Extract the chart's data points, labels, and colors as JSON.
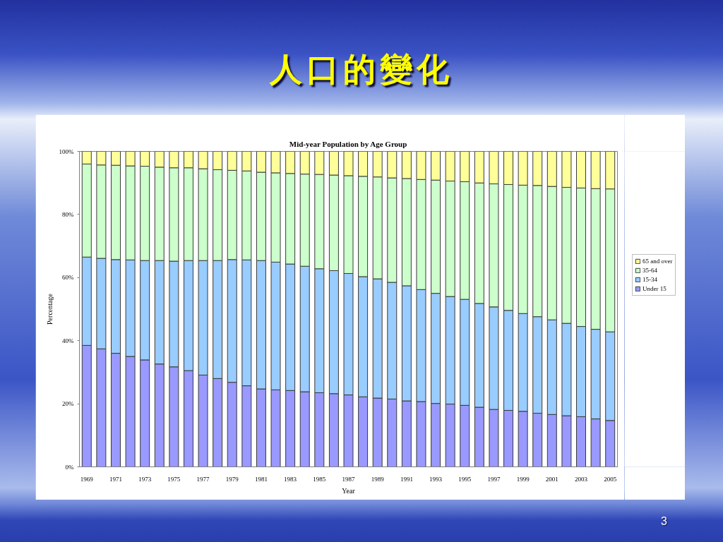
{
  "chart_data": {
    "type": "bar",
    "title": "人口的變化",
    "subtitle": "Mid-year Population by Age Group",
    "xlabel": "Year",
    "ylabel": "Percentage",
    "categories": [
      "1969",
      null,
      "1971",
      null,
      "1973",
      null,
      "1975",
      null,
      "1977",
      null,
      "1979",
      null,
      "1981",
      null,
      "1983",
      null,
      "1985",
      null,
      "1987",
      null,
      "1989",
      null,
      "1991",
      null,
      "1993",
      null,
      "1995",
      null,
      "1997",
      null,
      "1999",
      null,
      "2001",
      null,
      "2003",
      null,
      "2005"
    ],
    "stacked": true,
    "series": [
      {
        "name": "Under 15",
        "color": "#9999ff",
        "values": [
          38.5,
          37.4,
          36.0,
          35.0,
          33.9,
          32.6,
          31.7,
          30.5,
          29.1,
          28.0,
          26.8,
          25.7,
          24.7,
          24.4,
          24.2,
          23.8,
          23.5,
          23.2,
          22.8,
          22.2,
          21.8,
          21.5,
          20.9,
          20.7,
          20.1,
          19.9,
          19.5,
          18.9,
          18.2,
          17.9,
          17.6,
          17.0,
          16.6,
          16.2,
          15.9,
          15.2,
          14.7
        ]
      },
      {
        "name": "15-34",
        "color": "#99ccff",
        "values": [
          28.0,
          28.7,
          29.7,
          30.6,
          31.5,
          32.8,
          33.5,
          34.9,
          36.3,
          37.4,
          38.9,
          39.9,
          40.7,
          40.5,
          40.1,
          39.8,
          39.3,
          39.0,
          38.5,
          38.1,
          37.8,
          37.0,
          36.5,
          35.5,
          34.9,
          34.1,
          33.6,
          32.9,
          32.5,
          31.7,
          31.0,
          30.6,
          30.0,
          29.3,
          28.6,
          28.4,
          28.1
        ]
      },
      {
        "name": "35-64",
        "color": "#ccffcc",
        "values": [
          29.5,
          29.6,
          29.9,
          29.8,
          29.9,
          29.6,
          29.6,
          29.4,
          29.1,
          28.8,
          28.3,
          28.2,
          28.0,
          28.3,
          28.7,
          29.2,
          29.9,
          30.3,
          31.0,
          31.8,
          32.3,
          33.1,
          34.0,
          34.9,
          35.9,
          36.6,
          37.3,
          38.2,
          39.0,
          39.9,
          40.7,
          41.6,
          42.3,
          43.1,
          43.9,
          44.6,
          45.3
        ]
      },
      {
        "name": "65 and over",
        "color": "#ffff99",
        "values": [
          4.0,
          4.3,
          4.4,
          4.6,
          4.7,
          5.0,
          5.2,
          5.2,
          5.5,
          5.8,
          6.0,
          6.2,
          6.6,
          6.8,
          7.0,
          7.2,
          7.3,
          7.5,
          7.7,
          7.9,
          8.1,
          8.4,
          8.6,
          8.9,
          9.1,
          9.4,
          9.6,
          10.0,
          10.3,
          10.5,
          10.7,
          10.8,
          11.1,
          11.4,
          11.6,
          11.8,
          11.9
        ]
      }
    ],
    "ylim": [
      0,
      100
    ],
    "yticks": [
      {
        "value": 0,
        "label": "0%"
      },
      {
        "value": 20,
        "label": "20%"
      },
      {
        "value": 40,
        "label": "40%"
      },
      {
        "value": 60,
        "label": "60%"
      },
      {
        "value": 80,
        "label": "80%"
      },
      {
        "value": 100,
        "label": "100%"
      }
    ],
    "grid": false,
    "legend": "right",
    "annotations": [
      "3"
    ]
  }
}
